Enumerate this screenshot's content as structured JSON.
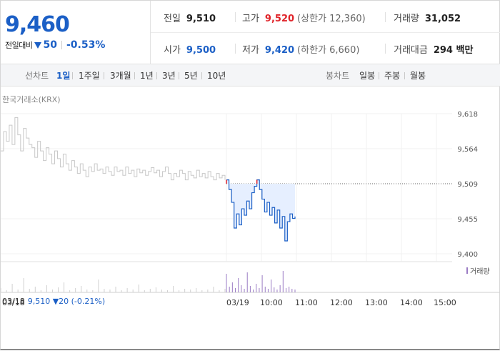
{
  "quote": {
    "price": "9,460",
    "change_label": "전일대비",
    "change_value": "50",
    "change_rate": "-0.53%",
    "direction": "down"
  },
  "stats": {
    "prev_close": {
      "label": "전일",
      "value": "9,510"
    },
    "open": {
      "label": "시가",
      "value": "9,500"
    },
    "high": {
      "label": "고가",
      "value": "9,520",
      "sub": "(상한가 12,360)"
    },
    "low": {
      "label": "저가",
      "value": "9,420",
      "sub": "(하한가 6,660)"
    },
    "volume": {
      "label": "거래량",
      "value": "31,052"
    },
    "trade_amount": {
      "label": "거래대금",
      "value": "294 백만"
    }
  },
  "tabs": {
    "line_label": "선차트",
    "line_items": [
      "1일",
      "1주일",
      "3개월",
      "1년",
      "3년",
      "5년",
      "10년"
    ],
    "line_active": "1일",
    "candle_label": "봉차트",
    "candle_items": [
      "일봉",
      "주봉",
      "월봉"
    ]
  },
  "source_label": "한국거래소(KRX)",
  "bottom": {
    "prev_date": "03/18",
    "prev_info": "9,510 ▼20 (-0.21%)"
  },
  "colors": {
    "accent_blue": "#1b5fc6",
    "up_red": "#e0242a",
    "prev_line_gray": "#c8c8c8",
    "volume_purple": "#9a7bc4"
  },
  "chart_data": {
    "type": "line",
    "y_ticks": [
      "9,618",
      "9,564",
      "9,509",
      "9,455",
      "9,400"
    ],
    "ylim": [
      9400,
      9618
    ],
    "prev_close_ref": 9509,
    "x_ticks": [
      "03/19",
      "10:00",
      "11:00",
      "12:00",
      "13:00",
      "14:00",
      "15:00"
    ],
    "prev_day_x_tick": "03/18",
    "volume_legend": "거래량",
    "prev_day_series": [
      9560,
      9590,
      9575,
      9600,
      9570,
      9612,
      9585,
      9560,
      9595,
      9580,
      9570,
      9565,
      9550,
      9575,
      9560,
      9545,
      9565,
      9555,
      9540,
      9560,
      9548,
      9535,
      9555,
      9540,
      9530,
      9545,
      9535,
      9525,
      9540,
      9530,
      9520,
      9535,
      9528,
      9540,
      9530,
      9532,
      9525,
      9535,
      9528,
      9522,
      9535,
      9528,
      9530,
      9522,
      9535,
      9525,
      9530,
      9520,
      9532,
      9526,
      9530,
      9522,
      9528,
      9534,
      9526,
      9530,
      9520,
      9528,
      9535,
      9525,
      9515,
      9525,
      9520,
      9530,
      9525,
      9515,
      9528,
      9522,
      9518,
      9530,
      9520,
      9525,
      9518,
      9528,
      9520,
      9515,
      9525,
      9518,
      9522,
      9515
    ],
    "today_series": [
      9515,
      9500,
      9480,
      9440,
      9462,
      9445,
      9470,
      9460,
      9482,
      9470,
      9495,
      9505,
      9515,
      9500,
      9485,
      9465,
      9480,
      9460,
      9472,
      9448,
      9468,
      9440,
      9458,
      9420,
      9450,
      9462,
      9455,
      9458
    ]
  }
}
